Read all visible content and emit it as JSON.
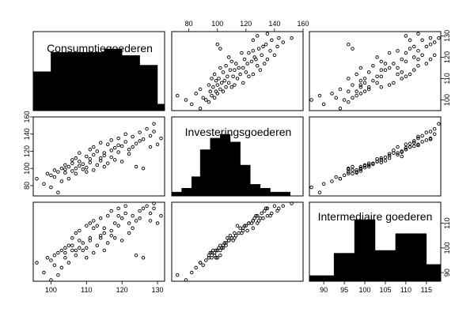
{
  "chart_data": {
    "type": "scatter",
    "variables": [
      {
        "name": "Consumptiegoederen",
        "range": [
          95,
          132
        ],
        "ticks": [
          100,
          110,
          120,
          130
        ],
        "hist": {
          "breaks": [
            95,
            100,
            105,
            110,
            115,
            120,
            125,
            130,
            132
          ],
          "counts": [
            6,
            9,
            9,
            9,
            9.5,
            8.5,
            7,
            1
          ]
        }
      },
      {
        "name": "Investeringsgoederen",
        "range": [
          68,
          160
        ],
        "ticks_top": [
          80,
          100,
          120,
          140,
          160
        ],
        "ticks_left": [
          80,
          100,
          120,
          140,
          160
        ],
        "hist": {
          "breaks": [
            68,
            75,
            82,
            88,
            95,
            102,
            109,
            116,
            123,
            130,
            137,
            144,
            151,
            160
          ],
          "counts": [
            0.5,
            1,
            2.5,
            6,
            7.5,
            8,
            7,
            4,
            1.5,
            1,
            0.5,
            0.5,
            0
          ]
        }
      },
      {
        "name": "Intermediaire goederen",
        "range": [
          86.5,
          118.5
        ],
        "ticks_bottom": [
          90,
          95,
          100,
          105,
          110,
          115
        ],
        "ticks_right": [
          90,
          100,
          110
        ],
        "hist": {
          "breaks": [
            86.5,
            90,
            92.5,
            95,
            97.5,
            100,
            102.5,
            105,
            107.5,
            110,
            112.5,
            115,
            117.5,
            118.5
          ],
          "counts": [
            0.5,
            0.5,
            2.5,
            2.5,
            5.5,
            5.5,
            2.75,
            2.75,
            4.25,
            4.25,
            4.25,
            1.5,
            1.5
          ]
        }
      }
    ],
    "observations": {
      "Consumptiegoederen": [
        96,
        98,
        99,
        100,
        100,
        101,
        101,
        102,
        102,
        103,
        103,
        104,
        104,
        104,
        105,
        105,
        106,
        106,
        106,
        107,
        107,
        107,
        108,
        108,
        108,
        109,
        109,
        110,
        110,
        110,
        111,
        111,
        111,
        112,
        112,
        112,
        113,
        113,
        114,
        114,
        114,
        115,
        115,
        115,
        116,
        116,
        117,
        117,
        117,
        118,
        118,
        119,
        119,
        119,
        120,
        120,
        121,
        121,
        122,
        122,
        123,
        123,
        124,
        124,
        125,
        125,
        126,
        126,
        127,
        128,
        128,
        129,
        129,
        130,
        131
      ],
      "Investeringsgoederen": [
        88,
        82,
        94,
        78,
        92,
        90,
        98,
        72,
        96,
        85,
        100,
        99,
        104,
        95,
        102,
        88,
        110,
        97,
        106,
        112,
        100,
        94,
        118,
        108,
        103,
        105,
        99,
        96,
        114,
        101,
        122,
        107,
        111,
        116,
        98,
        125,
        104,
        120,
        109,
        112,
        130,
        102,
        115,
        118,
        128,
        106,
        121,
        133,
        113,
        110,
        124,
        127,
        119,
        135,
        108,
        126,
        131,
        140,
        122,
        117,
        137,
        125,
        129,
        102,
        142,
        132,
        134,
        100,
        146,
        125,
        138,
        152,
        143,
        128,
        135
      ],
      "Intermediaire goederen": [
        94,
        90,
        96,
        87,
        95,
        93,
        97,
        89,
        98,
        92,
        99,
        96,
        100,
        98,
        101,
        94,
        104,
        99,
        101,
        106,
        99,
        97,
        107,
        103,
        100,
        102,
        99,
        96,
        109,
        100,
        110,
        104,
        103,
        108,
        98,
        111,
        101,
        109,
        105,
        104,
        112,
        99,
        106,
        108,
        113,
        102,
        107,
        115,
        105,
        104,
        110,
        113,
        109,
        116,
        103,
        112,
        114,
        117,
        110,
        106,
        113,
        108,
        111,
        97,
        115,
        112,
        116,
        96,
        117,
        111,
        114,
        118,
        116,
        110,
        113
      ]
    }
  }
}
